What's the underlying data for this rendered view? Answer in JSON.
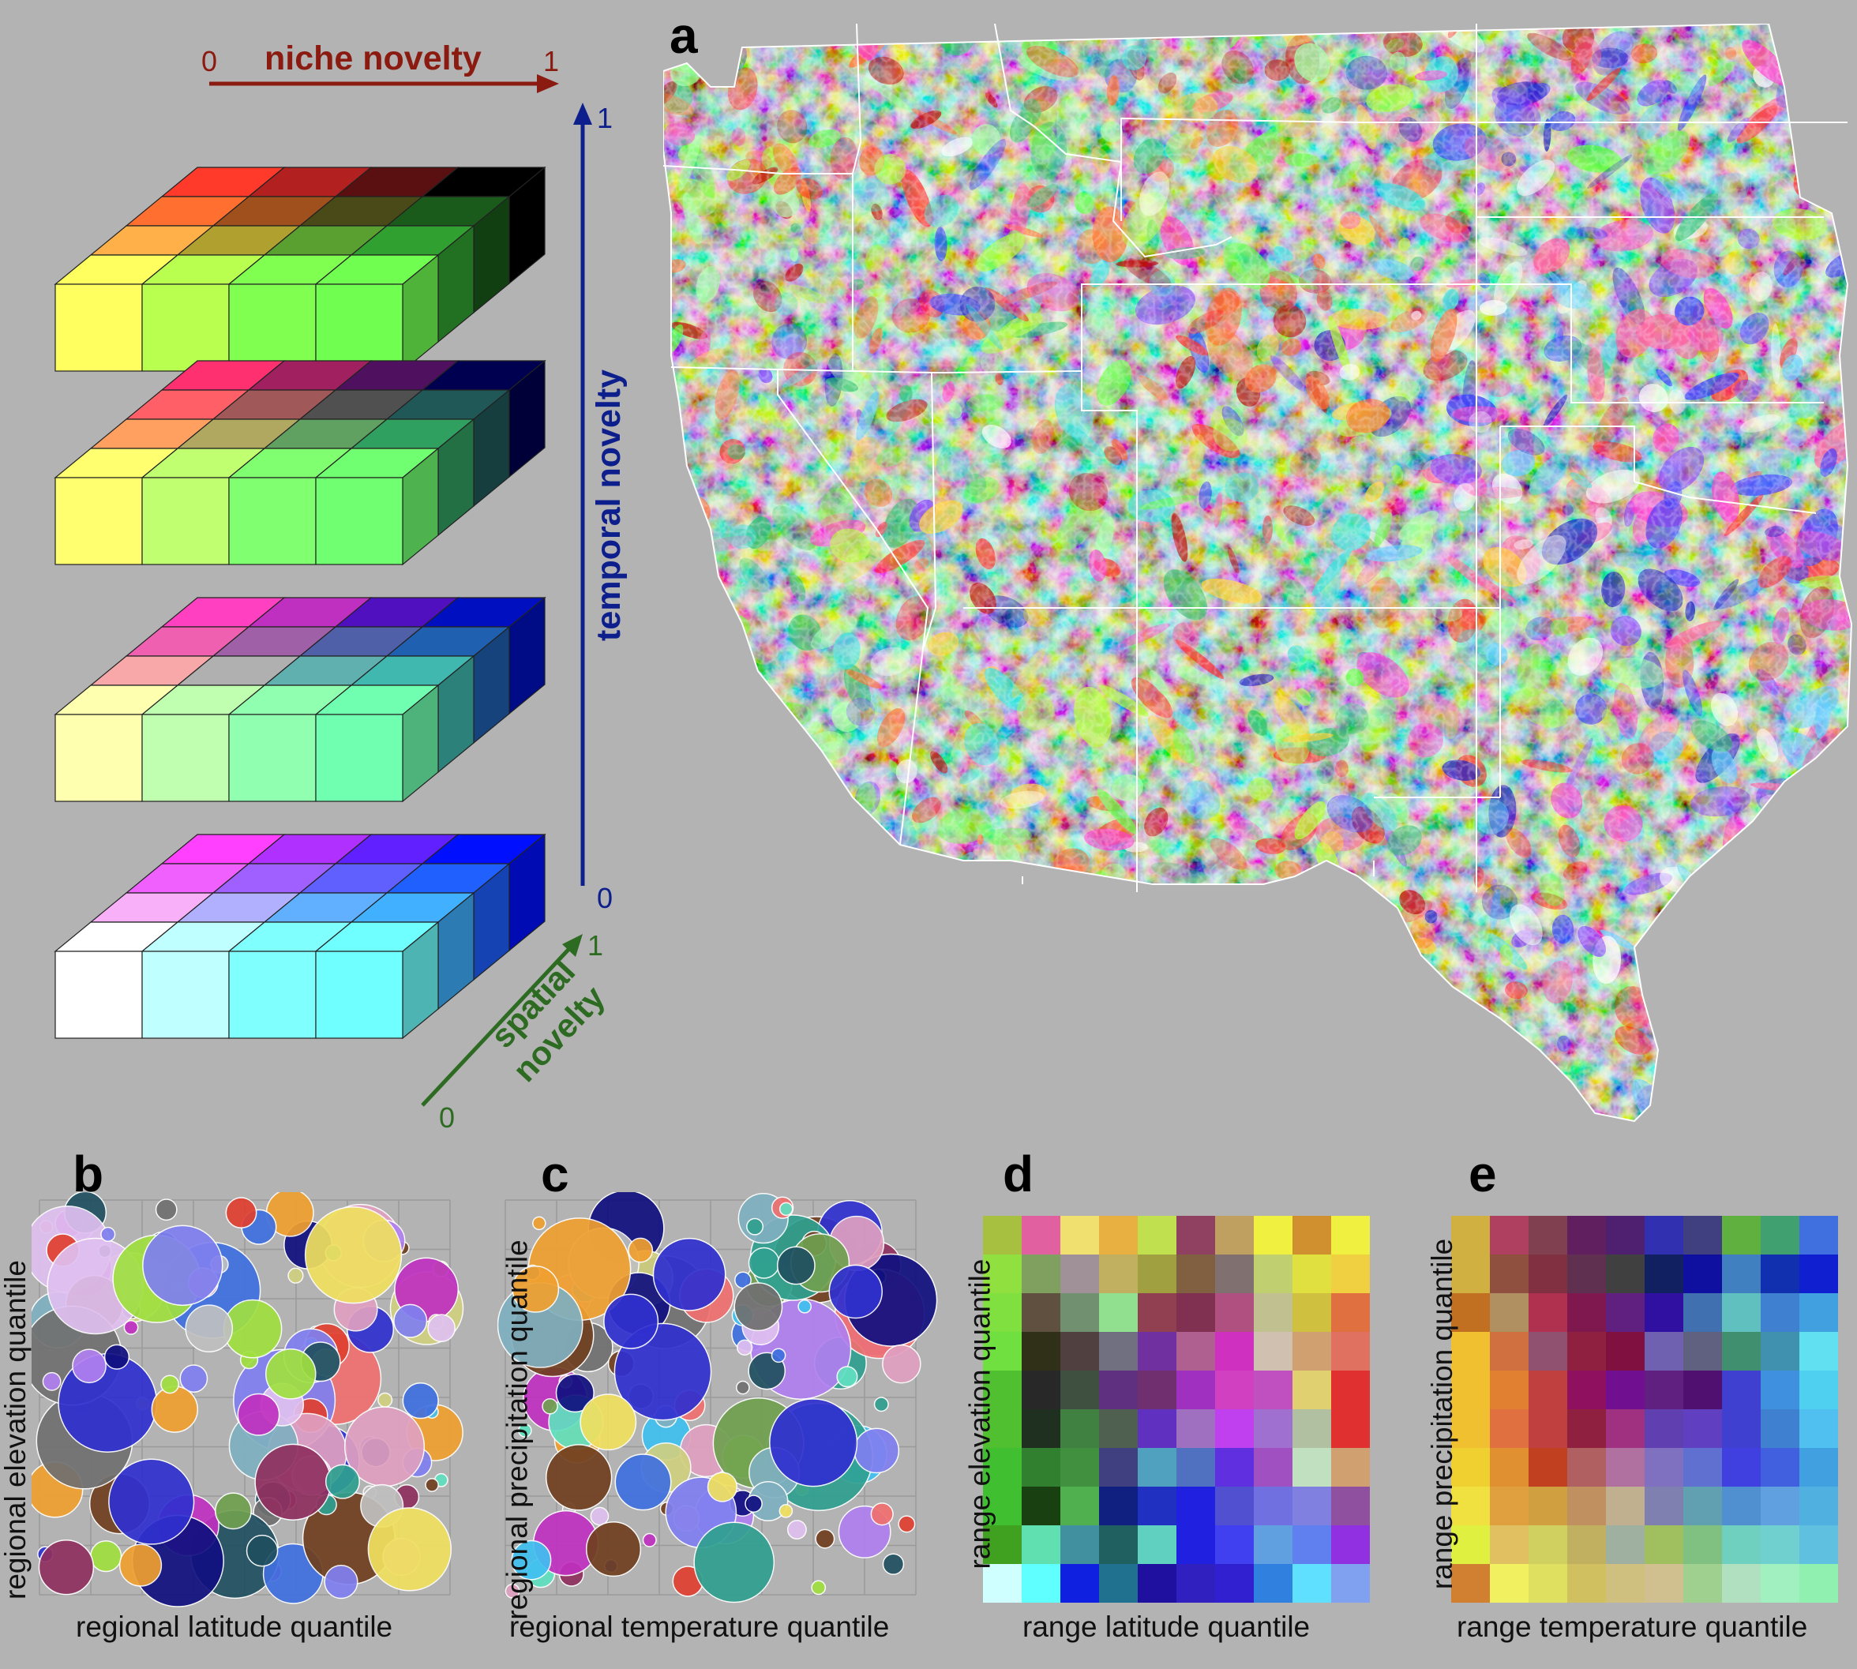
{
  "panel_letters": {
    "a": "a",
    "b": "b",
    "c": "c",
    "d": "d",
    "e": "e"
  },
  "legend": {
    "niche_label": "niche novelty",
    "niche_min": "0",
    "niche_max": "1",
    "temporal_label": "temporal novelty",
    "temporal_min": "0",
    "temporal_max": "1",
    "spatial_label_line1": "spatial",
    "spatial_label_line2": "novelty",
    "spatial_min": "0",
    "spatial_max": "1",
    "colors": {
      "niche": "#8b1a10",
      "temporal": "#0d1f8c",
      "spatial": "#2e6b22"
    }
  },
  "panel_b": {
    "xlabel": "regional latitude quantile",
    "ylabel": "regional elevation quantile"
  },
  "panel_c": {
    "xlabel": "regional temperature quantile",
    "ylabel": "regional precipitation quantile"
  },
  "panel_d": {
    "xlabel": "range latitude quantile",
    "ylabel": "range elevation quantile"
  },
  "panel_e": {
    "xlabel": "range temperature quantile",
    "ylabel": "range precipitation quantile"
  }
}
